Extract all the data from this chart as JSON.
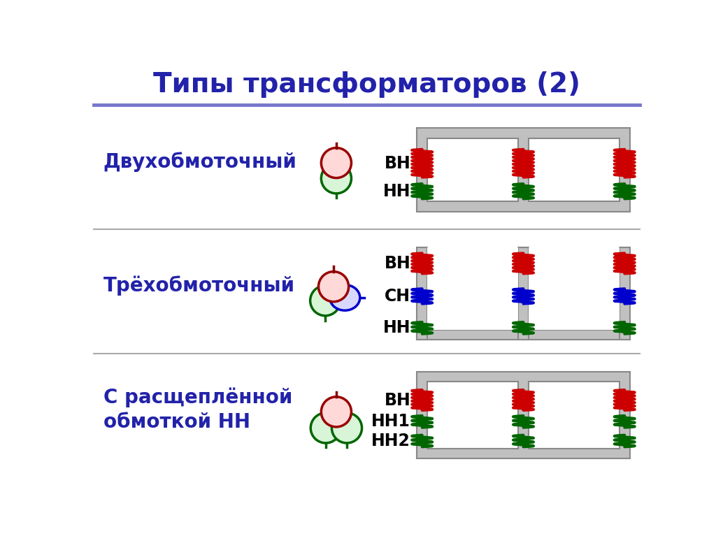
{
  "title": "Типы трансформаторов (2)",
  "title_color": "#2222AA",
  "title_fontsize": 28,
  "background_color": "#FFFFFF",
  "rows": [
    {
      "label": "Двухобмоточный",
      "winding_labels": [
        "ВН",
        "НН"
      ],
      "winding_colors": [
        "#CC0000",
        "#006600"
      ],
      "n_windings": 2
    },
    {
      "label": "Трёхобмоточный",
      "winding_labels": [
        "ВН",
        "СН",
        "НН"
      ],
      "winding_colors": [
        "#CC0000",
        "#0000CC",
        "#006600"
      ],
      "n_windings": 3
    },
    {
      "label": "С расщеплённой\nобмоткой НН",
      "winding_labels": [
        "ВН",
        "НН1",
        "НН2"
      ],
      "winding_colors": [
        "#CC0000",
        "#006600",
        "#006600"
      ],
      "n_windings": 3
    }
  ],
  "separator_color": "#AAAAAA",
  "top_separator_color": "#7777CC",
  "label_color": "#2222AA",
  "label_fontsize": 20,
  "core_gray": "#C0C0C0",
  "core_edge": "#888888"
}
